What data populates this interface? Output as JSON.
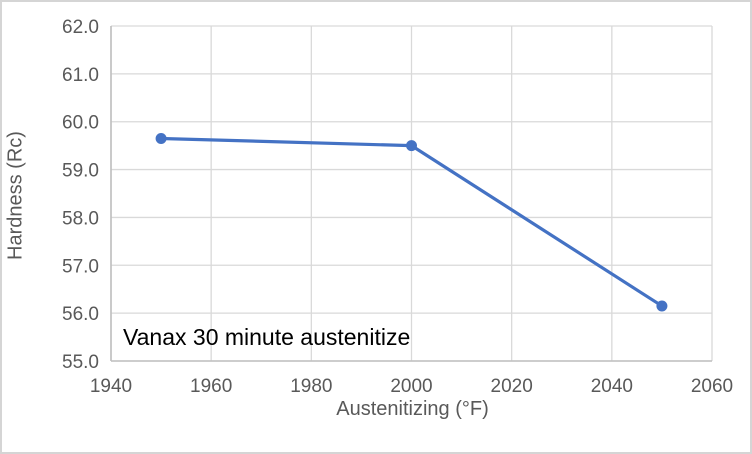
{
  "chart_data": {
    "type": "line",
    "title": "",
    "xlabel": "Austenitizing (°F)",
    "ylabel": "Hardness (Rc)",
    "annotation": "Vanax 30 minute austenitize",
    "xlim": [
      1940,
      2060
    ],
    "ylim": [
      55.0,
      62.0
    ],
    "x_ticks": [
      "1940",
      "1960",
      "1980",
      "2000",
      "2020",
      "2040",
      "2060"
    ],
    "y_ticks": [
      "55.0",
      "56.0",
      "57.0",
      "58.0",
      "59.0",
      "60.0",
      "61.0",
      "62.0"
    ],
    "grid": true,
    "legend": "none",
    "series": [
      {
        "name": "Vanax 30 minute austenitize",
        "x": [
          1950,
          2000,
          2050
        ],
        "y": [
          59.65,
          59.5,
          56.15
        ],
        "color": "#4472C4",
        "marker": "circle"
      }
    ]
  },
  "colors": {
    "line": "#4472C4",
    "gridline": "#D9D9D9",
    "axis_line": "#BFBFBF",
    "tick_text": "#595959",
    "annotation_text": "#000000",
    "chart_border": "#D5D5D5",
    "background": "#FFFFFF"
  }
}
